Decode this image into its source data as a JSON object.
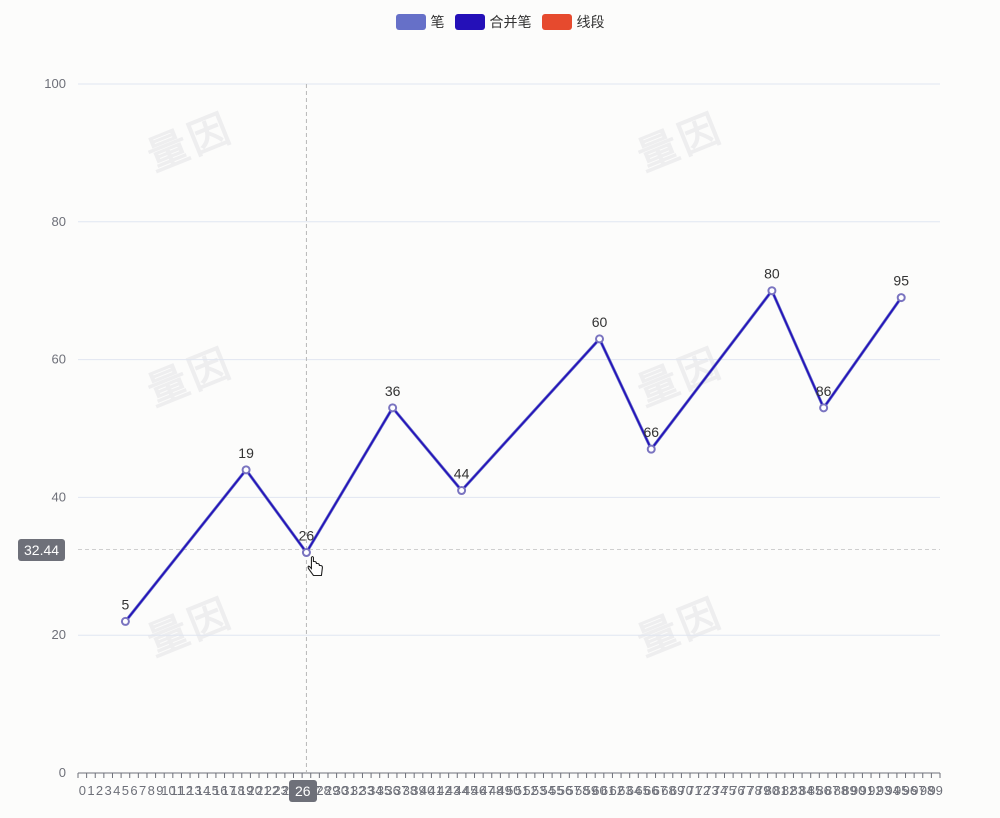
{
  "legend": {
    "items": [
      {
        "label": "笔",
        "color": "#6670c8"
      },
      {
        "label": "合并笔",
        "color": "#2410b8"
      },
      {
        "label": "线段",
        "color": "#e64a2e"
      }
    ]
  },
  "watermark_text": "量因",
  "axis_pointer": {
    "y_value": "32.44",
    "x_value": "26"
  },
  "chart_data": {
    "type": "line",
    "ylim": [
      0,
      100
    ],
    "yticks": [
      0,
      20,
      40,
      60,
      80,
      100
    ],
    "x_range": [
      0,
      99
    ],
    "series": [
      {
        "name": "笔",
        "color": "#6670c8",
        "x": [
          5,
          19,
          26,
          36,
          44,
          60,
          66,
          80,
          86,
          95
        ],
        "y": [
          22,
          44,
          32,
          53,
          41,
          63,
          47,
          70,
          53,
          69
        ]
      },
      {
        "name": "合并笔",
        "color": "#2410b8",
        "x": [
          5,
          19,
          26,
          36,
          44,
          60,
          66,
          80,
          86,
          95
        ],
        "y": [
          22,
          44,
          32,
          53,
          41,
          63,
          47,
          70,
          53,
          69
        ]
      }
    ],
    "point_labels": [
      "5",
      "19",
      "26",
      "36",
      "44",
      "60",
      "66",
      "80",
      "86",
      "95"
    ]
  }
}
